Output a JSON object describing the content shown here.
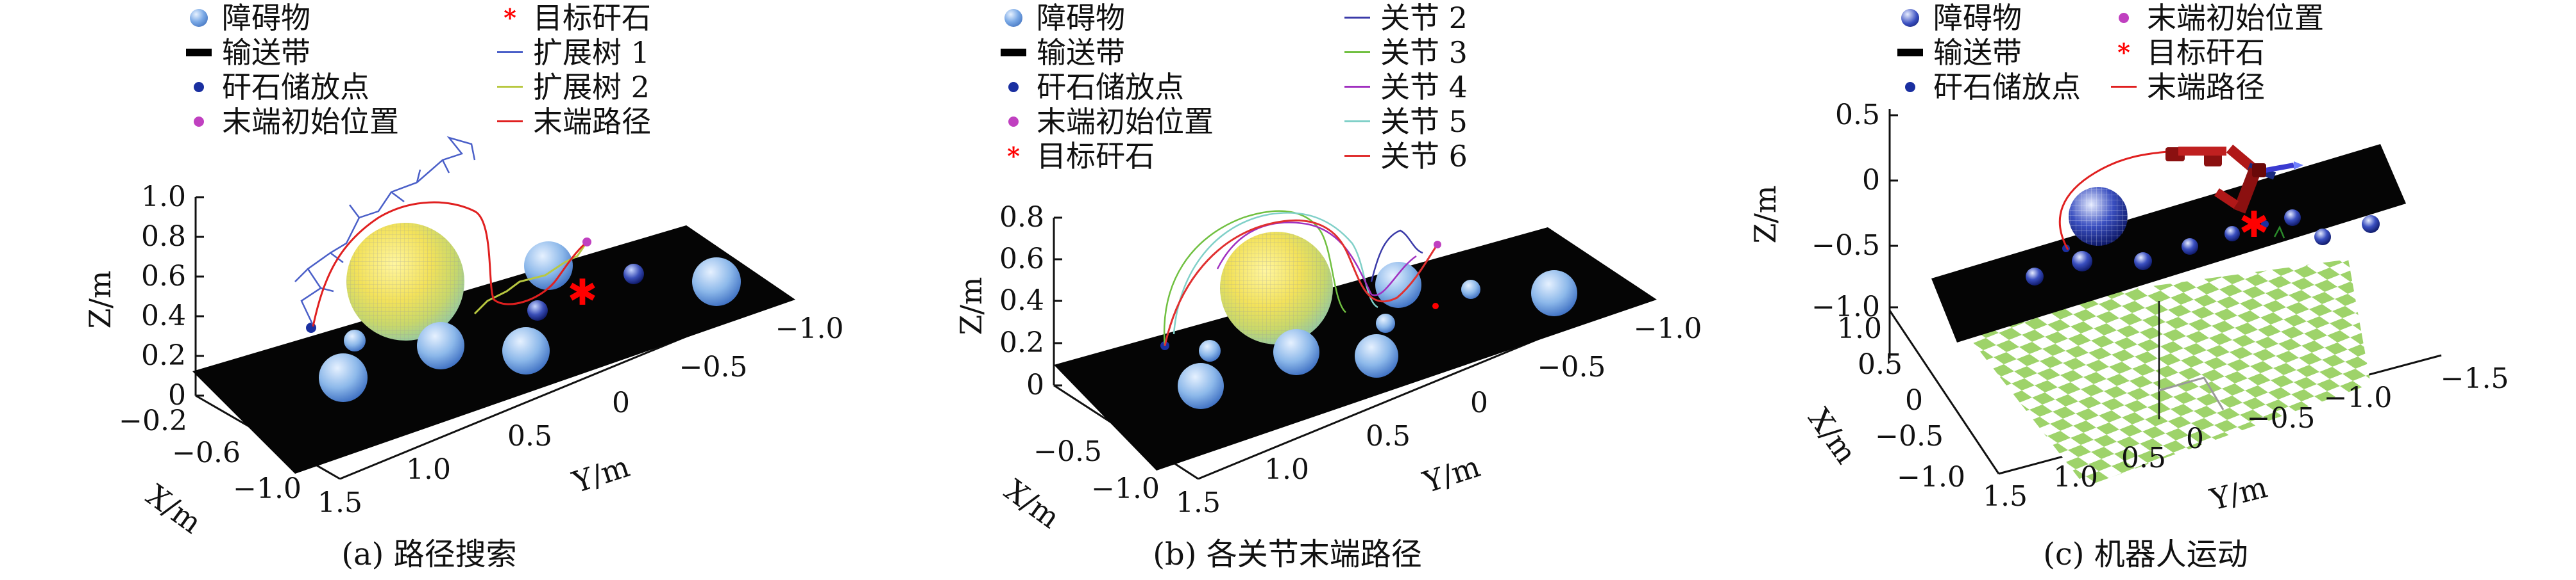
{
  "figure": {
    "panels": [
      {
        "caption": "(a) 路径搜索",
        "legend": [
          {
            "label": "障碍物",
            "icon": "sphere-icon",
            "color": "#5b8fd8"
          },
          {
            "label": "目标矸石",
            "icon": "star-icon",
            "color": "#ff0000"
          },
          {
            "label": "输送带",
            "icon": "bar-icon",
            "color": "#000000"
          },
          {
            "label": "扩展树 1",
            "icon": "line-icon",
            "color": "#4a5fc8"
          },
          {
            "label": "矸石储放点",
            "icon": "dot-icon",
            "color": "#1a2fa0"
          },
          {
            "label": "扩展树 2",
            "icon": "line-icon",
            "color": "#b8c840"
          },
          {
            "label": "末端初始位置",
            "icon": "dot-icon",
            "color": "#c040c0"
          },
          {
            "label": "末端路径",
            "icon": "line-icon",
            "color": "#e02020"
          }
        ],
        "axes": {
          "zlabel": "Z/m",
          "xlabel": "X/m",
          "ylabel": "Y/m",
          "zticks": [
            "1.0",
            "0.8",
            "0.6",
            "0.4",
            "0.2",
            "0"
          ],
          "xticks": [
            "−0.2",
            "−0.6",
            "−1.0"
          ],
          "yticks": [
            "1.5",
            "1.0",
            "0.5",
            "0",
            "−0.5",
            "−1.0"
          ]
        }
      },
      {
        "caption": "(b) 各关节末端路径",
        "legend": [
          {
            "label": "障碍物",
            "icon": "sphere-icon",
            "color": "#5b8fd8"
          },
          {
            "label": "关节 2",
            "icon": "line-icon",
            "color": "#3a3aa8"
          },
          {
            "label": "输送带",
            "icon": "bar-icon",
            "color": "#000000"
          },
          {
            "label": "关节 3",
            "icon": "line-icon",
            "color": "#70c040"
          },
          {
            "label": "矸石储放点",
            "icon": "dot-icon",
            "color": "#1a2fa0"
          },
          {
            "label": "关节 4",
            "icon": "line-icon",
            "color": "#a030c0"
          },
          {
            "label": "末端初始位置",
            "icon": "dot-icon",
            "color": "#c040c0"
          },
          {
            "label": "关节 5",
            "icon": "line-icon",
            "color": "#80d0c8"
          },
          {
            "label": "目标矸石",
            "icon": "star-icon",
            "color": "#ff0000"
          },
          {
            "label": "关节 6",
            "icon": "line-icon",
            "color": "#e03030"
          }
        ],
        "axes": {
          "zlabel": "Z/m",
          "xlabel": "X/m",
          "ylabel": "Y/m",
          "zticks": [
            "0.8",
            "0.6",
            "0.4",
            "0.2",
            "0"
          ],
          "xticks": [
            "−0.5",
            "−1.0"
          ],
          "yticks": [
            "1.5",
            "1.0",
            "0.5",
            "0",
            "−0.5",
            "−1.0"
          ]
        }
      },
      {
        "caption": "(c) 机器人运动",
        "legend": [
          {
            "label": "障碍物",
            "icon": "sphere-icon",
            "color": "#5b8fd8"
          },
          {
            "label": "末端初始位置",
            "icon": "dot-icon",
            "color": "#c040c0"
          },
          {
            "label": "输送带",
            "icon": "bar-icon",
            "color": "#000000"
          },
          {
            "label": "目标矸石",
            "icon": "star-icon",
            "color": "#ff0000"
          },
          {
            "label": "矸石储放点",
            "icon": "dot-icon",
            "color": "#1a2fa0"
          },
          {
            "label": "末端路径",
            "icon": "line-icon",
            "color": "#e02020"
          }
        ],
        "axes": {
          "zlabel": "Z/m",
          "xlabel": "X/m",
          "ylabel": "Y/m",
          "zticks": [
            "0.5",
            "0",
            "−0.5",
            "−1.0"
          ],
          "xticks": [
            "1.0",
            "0.5",
            "0",
            "−0.5",
            "−1.0"
          ],
          "yticks": [
            "1.5",
            "1.0",
            "0.5",
            "0",
            "−0.5",
            "−1.0",
            "−1.5"
          ]
        }
      }
    ]
  },
  "chart_data": [
    {
      "type": "scatter",
      "title": "",
      "subtitle": "(a) 路径搜索",
      "xlabel": "X/m",
      "ylabel": "Y/m",
      "zlabel": "Z/m",
      "zlim": [
        0,
        1.0
      ],
      "ylim": [
        -1.0,
        1.5
      ],
      "xlim": [
        -1.0,
        -0.2
      ],
      "series": [
        {
          "name": "障碍物"
        },
        {
          "name": "输送带"
        },
        {
          "name": "矸石储放点"
        },
        {
          "name": "末端初始位置"
        },
        {
          "name": "目标矸石"
        },
        {
          "name": "扩展树 1"
        },
        {
          "name": "扩展树 2"
        },
        {
          "name": "末端路径"
        }
      ]
    },
    {
      "type": "line",
      "title": "",
      "subtitle": "(b) 各关节末端路径",
      "xlabel": "X/m",
      "ylabel": "Y/m",
      "zlabel": "Z/m",
      "zlim": [
        0,
        0.8
      ],
      "ylim": [
        -1.0,
        1.5
      ],
      "xlim": [
        -1.0,
        -0.5
      ],
      "series": [
        {
          "name": "障碍物"
        },
        {
          "name": "输送带"
        },
        {
          "name": "矸石储放点"
        },
        {
          "name": "末端初始位置"
        },
        {
          "name": "目标矸石"
        },
        {
          "name": "关节 2"
        },
        {
          "name": "关节 3"
        },
        {
          "name": "关节 4"
        },
        {
          "name": "关节 5"
        },
        {
          "name": "关节 6"
        }
      ]
    },
    {
      "type": "scatter",
      "title": "",
      "subtitle": "(c) 机器人运动",
      "xlabel": "X/m",
      "ylabel": "Y/m",
      "zlabel": "Z/m",
      "zlim": [
        -1.0,
        0.5
      ],
      "ylim": [
        -1.5,
        1.5
      ],
      "xlim": [
        -1.0,
        1.0
      ],
      "series": [
        {
          "name": "障碍物"
        },
        {
          "name": "输送带"
        },
        {
          "name": "矸石储放点"
        },
        {
          "name": "末端初始位置"
        },
        {
          "name": "目标矸石"
        },
        {
          "name": "末端路径"
        }
      ]
    }
  ]
}
